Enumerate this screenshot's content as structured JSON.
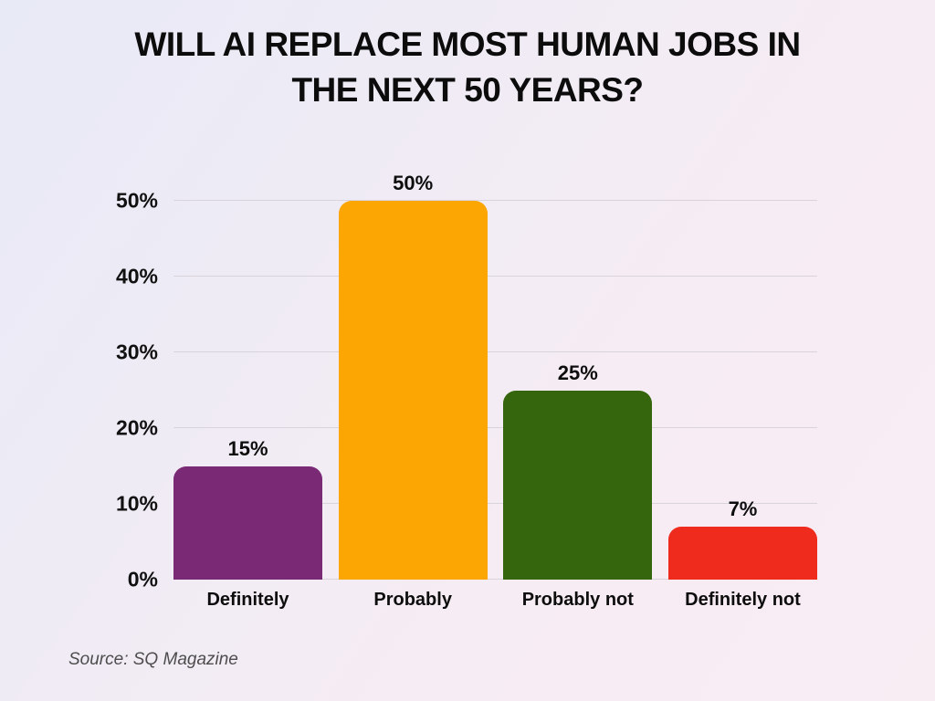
{
  "chart_data": {
    "type": "bar",
    "title": "WILL AI REPLACE MOST HUMAN JOBS IN THE NEXT 50 YEARS?",
    "title_lines": [
      "WILL AI REPLACE MOST HUMAN JOBS IN",
      "THE NEXT 50 YEARS?"
    ],
    "categories": [
      "Definitely",
      "Probably",
      "Probably not",
      "Definitely not"
    ],
    "values": [
      15,
      50,
      25,
      7
    ],
    "value_labels": [
      "15%",
      "50%",
      "25%",
      "7%"
    ],
    "bar_colors": [
      "#7a2a74",
      "#fba603",
      "#35660e",
      "#ee2b1c"
    ],
    "ylim": [
      0,
      50
    ],
    "y_tick_values": [
      0,
      10,
      20,
      30,
      40,
      50
    ],
    "y_tick_labels": [
      "0%",
      "10%",
      "20%",
      "30%",
      "40%",
      "50%"
    ],
    "grid": true,
    "legend": false,
    "xlabel": "",
    "ylabel": "",
    "source": "Source: SQ Magazine",
    "colors": {
      "grid": "#d9d3dc",
      "text": "#0d0d0d",
      "source_text": "#4d4d4d"
    }
  }
}
